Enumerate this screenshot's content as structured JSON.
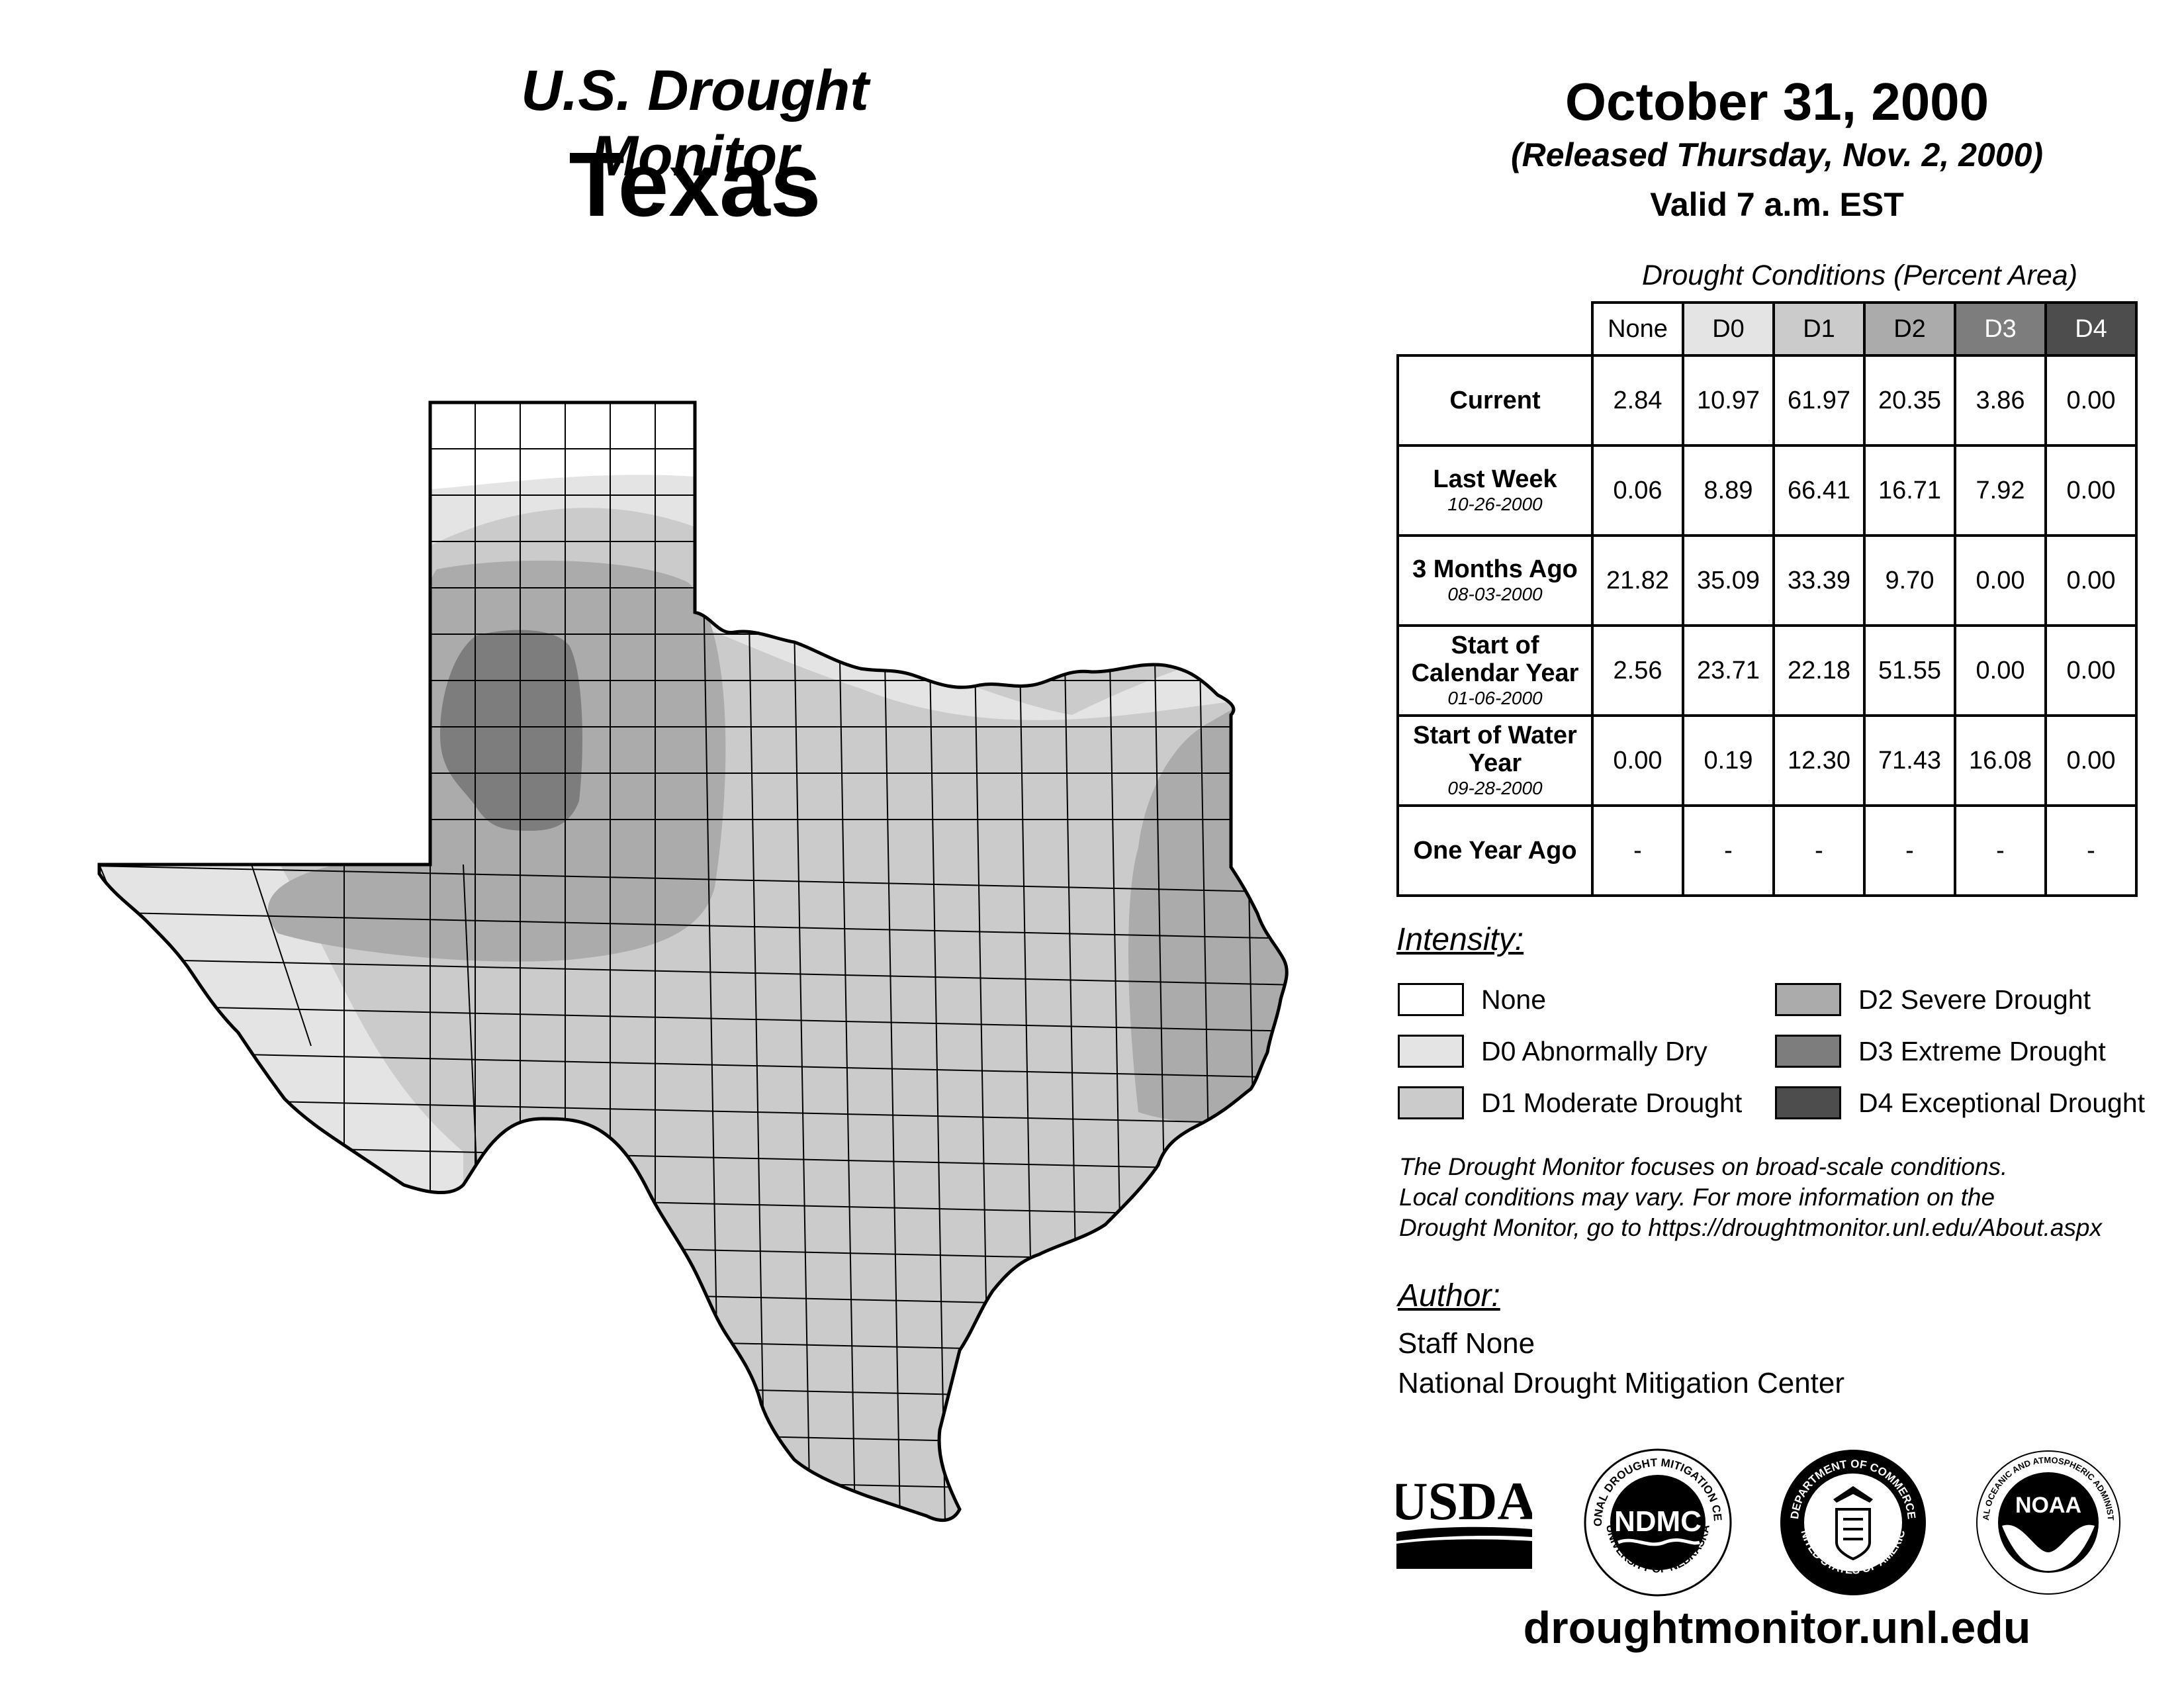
{
  "header": {
    "title": "U.S. Drought Monitor",
    "region": "Texas",
    "date": "October 31, 2000",
    "released": "(Released Thursday, Nov. 2, 2000)",
    "valid": "Valid 7 a.m. EST"
  },
  "table": {
    "title": "Drought Conditions (Percent Area)",
    "columns": [
      "None",
      "D0",
      "D1",
      "D2",
      "D3",
      "D4"
    ],
    "rows": [
      {
        "label": "Current",
        "date": "",
        "values": [
          "2.84",
          "10.97",
          "61.97",
          "20.35",
          "3.86",
          "0.00"
        ]
      },
      {
        "label": "Last Week",
        "date": "10-26-2000",
        "values": [
          "0.06",
          "8.89",
          "66.41",
          "16.71",
          "7.92",
          "0.00"
        ]
      },
      {
        "label": "3 Months Ago",
        "date": "08-03-2000",
        "values": [
          "21.82",
          "35.09",
          "33.39",
          "9.70",
          "0.00",
          "0.00"
        ]
      },
      {
        "label": "Start of Calendar Year",
        "date": "01-06-2000",
        "values": [
          "2.56",
          "23.71",
          "22.18",
          "51.55",
          "0.00",
          "0.00"
        ]
      },
      {
        "label": "Start of Water Year",
        "date": "09-28-2000",
        "values": [
          "0.00",
          "0.19",
          "12.30",
          "71.43",
          "16.08",
          "0.00"
        ]
      },
      {
        "label": "One Year Ago",
        "date": "",
        "values": [
          "-",
          "-",
          "-",
          "-",
          "-",
          "-"
        ]
      }
    ]
  },
  "legend": {
    "title": "Intensity:",
    "items": [
      {
        "label": "None",
        "color": "#ffffff"
      },
      {
        "label": "D0 Abnormally Dry",
        "color": "#e4e4e4"
      },
      {
        "label": "D1 Moderate Drought",
        "color": "#cbcbcb"
      },
      {
        "label": "D2 Severe Drought",
        "color": "#ababab"
      },
      {
        "label": "D3 Extreme Drought",
        "color": "#7d7d7d"
      },
      {
        "label": "D4 Exceptional Drought",
        "color": "#4d4d4d"
      }
    ]
  },
  "header_colors": [
    "#ffffff",
    "#e4e4e4",
    "#cbcbcb",
    "#ababab",
    "#7d7d7d",
    "#4d4d4d"
  ],
  "note": {
    "line1": "The Drought Monitor focuses on broad-scale conditions.",
    "line2": "Local conditions may vary. For more information on the",
    "line3": "Drought Monitor, go to https://droughtmonitor.unl.edu/About.aspx"
  },
  "author": {
    "heading": "Author:",
    "name": "Staff None",
    "org": "National Drought Mitigation Center"
  },
  "logos": {
    "usda": "USDA",
    "ndmc": "NDMC",
    "ndmc_ring_top": "NATIONAL DROUGHT MITIGATION CENTER",
    "ndmc_ring_bottom": "UNIVERSITY OF NEBRASKA",
    "doc_ring_top": "DEPARTMENT OF COMMERCE",
    "doc_ring_bottom": "UNITED STATES OF AMERICA",
    "noaa": "NOAA",
    "noaa_ring": "NATIONAL OCEANIC AND ATMOSPHERIC ADMINISTRATION"
  },
  "website": "droughtmonitor.unl.edu",
  "map_layers": [
    {
      "name": "d1-base",
      "category": "D1"
    },
    {
      "name": "d0-west",
      "category": "D0"
    },
    {
      "name": "d0-panhandle",
      "category": "D0"
    },
    {
      "name": "d0-north-red-river",
      "category": "D0"
    },
    {
      "name": "none-panhandle-top",
      "category": "None"
    },
    {
      "name": "d2-panhandle",
      "category": "D2"
    },
    {
      "name": "d2-east",
      "category": "D2"
    },
    {
      "name": "d3-panhandle",
      "category": "D3"
    }
  ]
}
